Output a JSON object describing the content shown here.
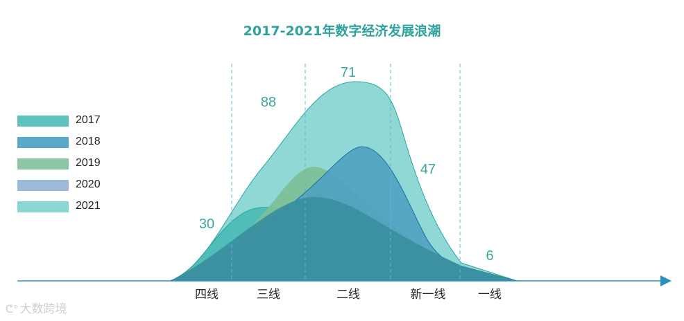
{
  "chart_data": {
    "type": "area",
    "title": "2017-2021年数字经济发展浪潮",
    "categories": [
      "四线",
      "三线",
      "二线",
      "新一线",
      "一线"
    ],
    "series": [
      {
        "name": "2017",
        "color": "#5cc3bd"
      },
      {
        "name": "2018",
        "color": "#5aa9cb"
      },
      {
        "name": "2019",
        "color": "#8cc6a3"
      },
      {
        "name": "2020",
        "color": "#9bbbd9"
      },
      {
        "name": "2021",
        "color": "#8ad6d3"
      }
    ],
    "value_labels": [
      {
        "category": "四线",
        "value": 30
      },
      {
        "category": "三线",
        "value": 88
      },
      {
        "category": "二线",
        "value": 71
      },
      {
        "category": "新一线",
        "value": 47
      },
      {
        "category": "一线",
        "value": 6
      }
    ],
    "legend": "left",
    "grid": false
  },
  "watermark": {
    "icon": "weibo-icon",
    "text": "大数跨境"
  }
}
